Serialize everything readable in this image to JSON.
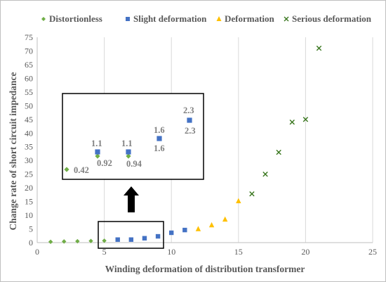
{
  "chart_data": {
    "type": "scatter",
    "xlabel": "Winding deformation of distribution transformer",
    "ylabel": "Change rate of short circuit impedance",
    "xlim": [
      0,
      25
    ],
    "ylim": [
      0,
      75
    ],
    "x_ticks": [
      "0",
      "5",
      "10",
      "15",
      "20",
      "25"
    ],
    "y_ticks": [
      "0",
      "5",
      "10",
      "15",
      "20",
      "25",
      "30",
      "35",
      "40",
      "45",
      "50",
      "55",
      "60",
      "65",
      "70",
      "75"
    ],
    "grid": "vertical",
    "legend_position": "top",
    "series": [
      {
        "name": "Distortionless",
        "marker": "diamond",
        "color": "#70ad47",
        "points": [
          [
            1,
            0.3
          ],
          [
            2,
            0.42
          ],
          [
            3,
            0.5
          ],
          [
            4,
            0.6
          ],
          [
            5,
            0.7
          ]
        ]
      },
      {
        "name": "Slight deformation",
        "marker": "square",
        "color": "#4472c4",
        "points": [
          [
            6,
            1.1
          ],
          [
            7,
            1.1
          ],
          [
            8,
            1.6
          ],
          [
            9,
            2.3
          ],
          [
            10,
            3.6
          ],
          [
            11,
            4.6
          ]
        ]
      },
      {
        "name": "Deformation",
        "marker": "triangle",
        "color": "#ffc000",
        "points": [
          [
            12,
            5.0
          ],
          [
            13,
            6.4
          ],
          [
            14,
            8.5
          ],
          [
            15,
            15.2
          ]
        ]
      },
      {
        "name": "Serious deformation",
        "marker": "x",
        "color": "#38761d",
        "points": [
          [
            16,
            17.8
          ],
          [
            17,
            25.0
          ],
          [
            18,
            33.0
          ],
          [
            19,
            44.0
          ],
          [
            20,
            45.0
          ],
          [
            21,
            71.0
          ]
        ]
      }
    ],
    "inset": {
      "description_points": [
        {
          "series": "Distortionless",
          "value_label": "0.42"
        },
        {
          "series": "Distortionless",
          "value_label": "0.92"
        },
        {
          "series": "Slight deformation",
          "value_label": "1.1"
        },
        {
          "series": "Distortionless",
          "value_label": "0.94"
        },
        {
          "series": "Slight deformation",
          "value_label": "1.1"
        },
        {
          "series": "Slight deformation",
          "value_label": "1.6"
        },
        {
          "series": "Slight deformation",
          "value_label": "1.6"
        },
        {
          "series": "Slight deformation",
          "value_label": "2.3"
        },
        {
          "series": "Slight deformation",
          "value_label": "2.3"
        }
      ]
    }
  }
}
